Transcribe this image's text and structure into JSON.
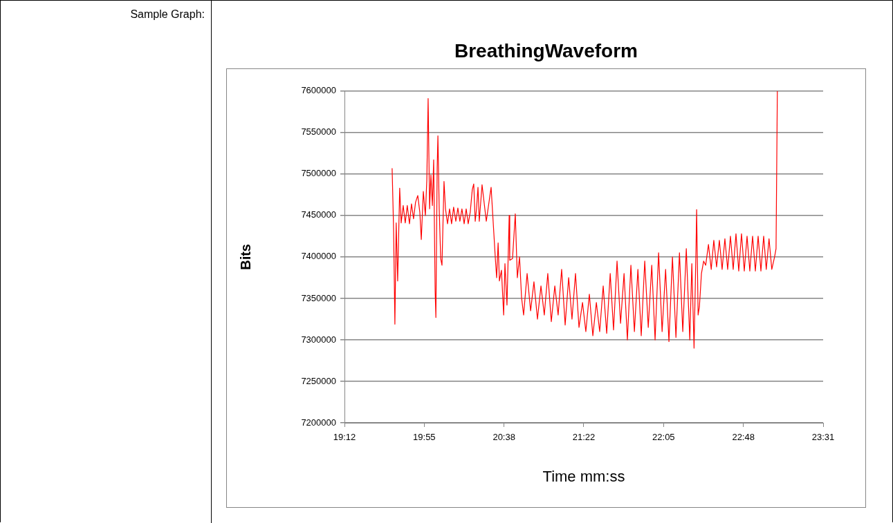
{
  "chart_data": {
    "type": "line",
    "title": "BreathingWaveform",
    "xlabel": "Time mm:ss",
    "ylabel": "Bits",
    "annotations": [
      "Sample Graph:"
    ],
    "xlim": [
      1152,
      1411.2
    ],
    "xticks": [
      {
        "value": 1152,
        "label": "19:12"
      },
      {
        "value": 1195.2,
        "label": "19:55"
      },
      {
        "value": 1238.4,
        "label": "20:38"
      },
      {
        "value": 1281.6,
        "label": "21:22"
      },
      {
        "value": 1324.8,
        "label": "22:05"
      },
      {
        "value": 1368,
        "label": "22:48"
      },
      {
        "value": 1411.2,
        "label": "23:31"
      }
    ],
    "ylim": [
      7200000,
      7600000
    ],
    "yticks": [
      7200000,
      7250000,
      7300000,
      7350000,
      7400000,
      7450000,
      7500000,
      7550000,
      7600000
    ],
    "grid": "y",
    "legend": false,
    "marker": "none",
    "line_style": "solid",
    "series": [
      {
        "color": "#ff0000",
        "x": [
          1177.8,
          1178.6,
          1179.3,
          1180,
          1180.8,
          1181.9,
          1182.7,
          1183.8,
          1184.9,
          1186,
          1187.2,
          1188.3,
          1189.4,
          1190.5,
          1191.7,
          1192.8,
          1193.6,
          1194.7,
          1195.8,
          1196.6,
          1197.3,
          1198.1,
          1198.8,
          1199.6,
          1200.3,
          1201.1,
          1201.5,
          1202.2,
          1202.6,
          1203.3,
          1204.1,
          1204.8,
          1205.9,
          1206.7,
          1207.8,
          1208.9,
          1210,
          1211.1,
          1212.3,
          1213.4,
          1214.5,
          1215.6,
          1216.8,
          1217.9,
          1219,
          1220.1,
          1221.2,
          1222,
          1222.8,
          1223.5,
          1224.3,
          1225,
          1226.5,
          1228.8,
          1231.4,
          1233.7,
          1234.4,
          1235.2,
          1235.9,
          1237,
          1238.2,
          1238.9,
          1240,
          1241.2,
          1241.5,
          1243,
          1244.5,
          1245.6,
          1246.8,
          1247.9,
          1249,
          1250.9,
          1252.8,
          1254.6,
          1256.5,
          1258.4,
          1260.2,
          1262.1,
          1264,
          1265.9,
          1267.7,
          1269.6,
          1271.5,
          1273.4,
          1275.2,
          1277.1,
          1279,
          1280.9,
          1282.7,
          1284.6,
          1286.5,
          1288.4,
          1290.2,
          1292.1,
          1294,
          1295.9,
          1297.7,
          1299.6,
          1301.5,
          1303.4,
          1305.2,
          1307.1,
          1309,
          1310.9,
          1312.7,
          1314.6,
          1316.5,
          1318.4,
          1320.2,
          1322.1,
          1324,
          1325.9,
          1327.7,
          1329.6,
          1331.5,
          1333.4,
          1335.2,
          1337.1,
          1339,
          1340.1,
          1341.3,
          1342.4,
          1342.7,
          1343.5,
          1344.2,
          1345.3,
          1346.5,
          1347.6,
          1349.1,
          1350.6,
          1352,
          1353.5,
          1355,
          1356.5,
          1358,
          1359.5,
          1361,
          1362.5,
          1364,
          1365.5,
          1367,
          1368.5,
          1370,
          1371.5,
          1373,
          1374.5,
          1376,
          1377.5,
          1379,
          1380.4,
          1381.9,
          1383.4,
          1384.9,
          1385.7,
          1386.4
        ],
        "values": [
          7507000,
          7433000,
          7319000,
          7441000,
          7371000,
          7483000,
          7441000,
          7462000,
          7441000,
          7462000,
          7440000,
          7464000,
          7446000,
          7466000,
          7474000,
          7454000,
          7421000,
          7479000,
          7450000,
          7493000,
          7591000,
          7458000,
          7499000,
          7462000,
          7517000,
          7359000,
          7327000,
          7507000,
          7546000,
          7458000,
          7398000,
          7390000,
          7491000,
          7458000,
          7440000,
          7458000,
          7440000,
          7460000,
          7443000,
          7459000,
          7443000,
          7458000,
          7440000,
          7458000,
          7440000,
          7454000,
          7481000,
          7488000,
          7443000,
          7458000,
          7484000,
          7443000,
          7487000,
          7443000,
          7484000,
          7398000,
          7375000,
          7417000,
          7371000,
          7384000,
          7330000,
          7392000,
          7342000,
          7450000,
          7396000,
          7398000,
          7452000,
          7375000,
          7400000,
          7351000,
          7330000,
          7380000,
          7335000,
          7370000,
          7325000,
          7365000,
          7330000,
          7380000,
          7322000,
          7365000,
          7330000,
          7385000,
          7318000,
          7375000,
          7325000,
          7380000,
          7315000,
          7345000,
          7310000,
          7355000,
          7305000,
          7345000,
          7310000,
          7365000,
          7308000,
          7380000,
          7312000,
          7395000,
          7320000,
          7380000,
          7300000,
          7390000,
          7310000,
          7385000,
          7305000,
          7395000,
          7315000,
          7390000,
          7300000,
          7405000,
          7310000,
          7385000,
          7298000,
          7400000,
          7303000,
          7405000,
          7310000,
          7410000,
          7300000,
          7392000,
          7290000,
          7415000,
          7457000,
          7330000,
          7340000,
          7380000,
          7395000,
          7390000,
          7415000,
          7385000,
          7420000,
          7388000,
          7420000,
          7385000,
          7422000,
          7385000,
          7425000,
          7385000,
          7428000,
          7383000,
          7428000,
          7383000,
          7425000,
          7383000,
          7425000,
          7383000,
          7425000,
          7383000,
          7425000,
          7385000,
          7422000,
          7385000,
          7400000,
          7410000,
          7600000
        ]
      }
    ]
  }
}
